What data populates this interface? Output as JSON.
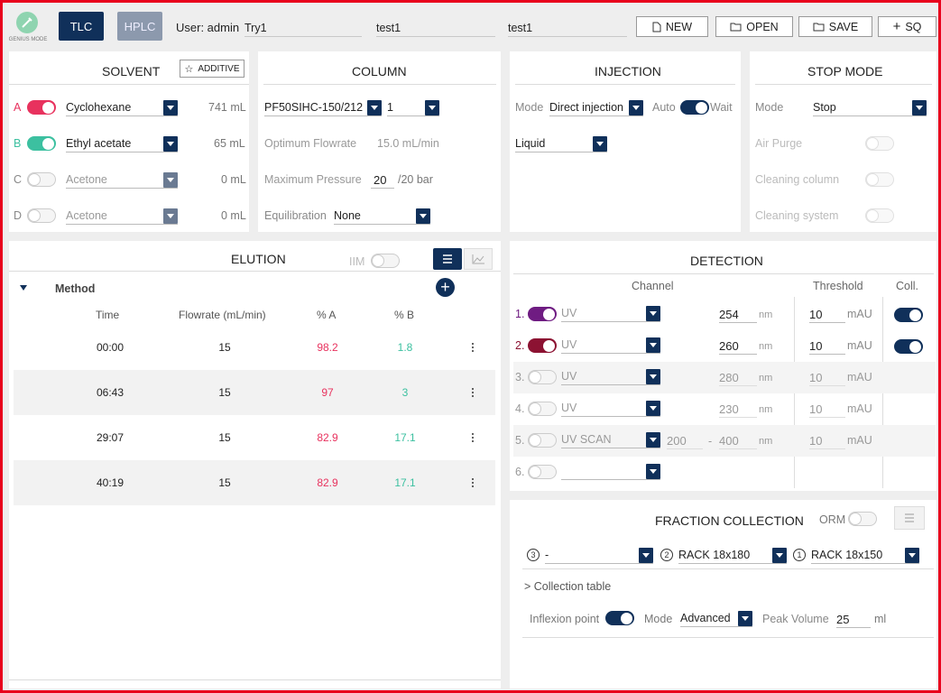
{
  "header": {
    "logo_text": "GENIUS MODE",
    "tlc_label": "TLC",
    "hplc_label": "HPLC",
    "user_label": "User: admin",
    "field1": "Try1",
    "field2": "test1",
    "field3": "test1",
    "new_label": "NEW",
    "open_label": "OPEN",
    "save_label": "SAVE",
    "sq_label": "SQ"
  },
  "solvent": {
    "title": "SOLVENT",
    "additive_label": "ADDITIVE",
    "lines": [
      {
        "letter": "A",
        "name": "Cyclohexane",
        "volume": "741 mL",
        "on": true
      },
      {
        "letter": "B",
        "name": "Ethyl acetate",
        "volume": "65 mL",
        "on": true
      },
      {
        "letter": "C",
        "name": "Acetone",
        "volume": "0 mL",
        "on": false
      },
      {
        "letter": "D",
        "name": "Acetone",
        "volume": "0 mL",
        "on": false
      }
    ]
  },
  "column": {
    "title": "COLUMN",
    "model": "PF50SIHC-150/212",
    "count": "1",
    "opt_flow_label": "Optimum Flowrate",
    "opt_flow_value": "15.0 mL/min",
    "max_pressure_label": "Maximum Pressure",
    "max_pressure_value": "20",
    "max_pressure_limit": "/20 bar",
    "equil_label": "Equilibration",
    "equil_value": "None"
  },
  "injection": {
    "title": "INJECTION",
    "mode_label": "Mode",
    "mode_value": "Direct injection",
    "auto_label": "Auto",
    "wait_label": "Wait",
    "type_value": "Liquid"
  },
  "stop_mode": {
    "title": "STOP MODE",
    "mode_label": "Mode",
    "mode_value": "Stop",
    "air_purge_label": "Air Purge",
    "cleaning_column_label": "Cleaning column",
    "cleaning_system_label": "Cleaning system"
  },
  "elution": {
    "title": "ELUTION",
    "iim_label": "IIM",
    "method_label": "Method",
    "headers": {
      "time": "Time",
      "flowrate": "Flowrate (mL/min)",
      "pa": "% A",
      "pb": "% B"
    },
    "rows": [
      {
        "time": "00:00",
        "flow": "15",
        "pa": "98.2",
        "pb": "1.8"
      },
      {
        "time": "06:43",
        "flow": "15",
        "pa": "97",
        "pb": "3"
      },
      {
        "time": "29:07",
        "flow": "15",
        "pa": "82.9",
        "pb": "17.1"
      },
      {
        "time": "40:19",
        "flow": "15",
        "pa": "82.9",
        "pb": "17.1"
      }
    ]
  },
  "detection": {
    "title": "DETECTION",
    "channel_header": "Channel",
    "threshold_header": "Threshold",
    "coll_header": "Coll.",
    "nm": "nm",
    "mau": "mAU",
    "dash": "-",
    "rows": [
      {
        "idx": "1.",
        "type": "UV",
        "wl": "254",
        "threshold": "10"
      },
      {
        "idx": "2.",
        "type": "UV",
        "wl": "260",
        "threshold": "10"
      },
      {
        "idx": "3.",
        "type": "UV",
        "wl": "280",
        "threshold": "10"
      },
      {
        "idx": "4.",
        "type": "UV",
        "wl": "230",
        "threshold": "10"
      },
      {
        "idx": "5.",
        "type": "UV SCAN",
        "wl_from": "200",
        "wl": "400",
        "threshold": "10"
      },
      {
        "idx": "6.",
        "type": ""
      }
    ]
  },
  "fraction": {
    "title": "FRACTION COLLECTION",
    "orm_label": "ORM",
    "rack3_num": "3",
    "rack3_value": "-",
    "rack2_num": "2",
    "rack2_value": "RACK 18x180",
    "rack1_num": "1",
    "rack1_value": "RACK 18x150",
    "collection_table_label": "> Collection table",
    "inflexion_label": "Inflexion point",
    "mode_label": "Mode",
    "mode_value": "Advanced",
    "peak_volume_label": "Peak Volume",
    "peak_volume_value": "25",
    "peak_volume_unit": "ml"
  },
  "colors": {
    "accent": "#10305a",
    "solvent_a": "#e8325e",
    "solvent_b": "#3cc0a0",
    "ch1": "#6f1c82",
    "ch2": "#8c1232",
    "frame": "#e8001c"
  }
}
